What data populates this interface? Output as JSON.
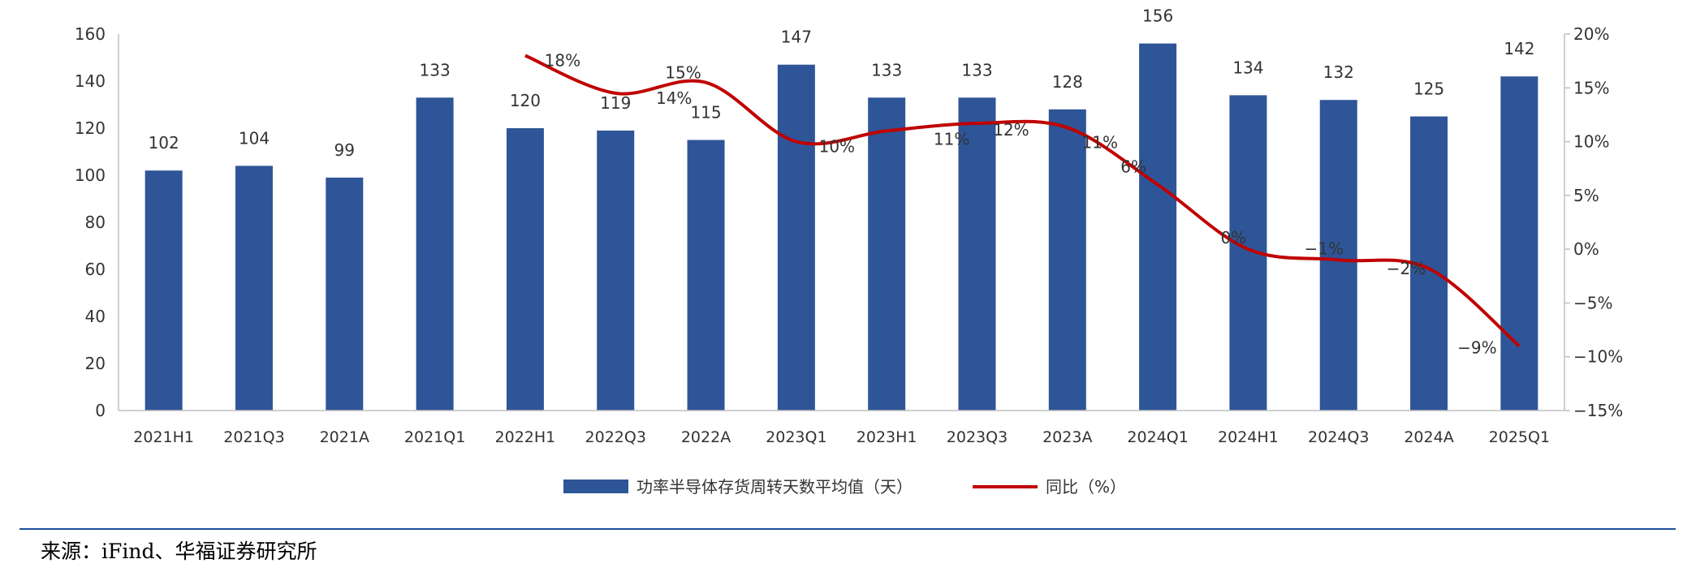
{
  "chart_data": {
    "type": "bar",
    "categories": [
      "2021H1",
      "2021Q3",
      "2021A",
      "2021Q1",
      "2022H1",
      "2022Q3",
      "2022A",
      "2023Q1",
      "2023H1",
      "2023Q3",
      "2023A",
      "2024Q1",
      "2024H1",
      "2024Q3",
      "2024A",
      "2025Q1"
    ],
    "series": [
      {
        "name": "功率半导体存货周转天数平均值（天）",
        "type": "bar",
        "axis": "left",
        "color": "#2e5597",
        "values": [
          102,
          104,
          99,
          133,
          120,
          119,
          115,
          147,
          133,
          133,
          128,
          156,
          134,
          132,
          125,
          142
        ],
        "labels": [
          "102",
          "104",
          "99",
          "133",
          "120",
          "119",
          "115",
          "147",
          "133",
          "133",
          "128",
          "156",
          "134",
          "132",
          "125",
          "142"
        ]
      },
      {
        "name": "同比（%）",
        "type": "line",
        "axis": "right",
        "color": "#c00000",
        "values": [
          null,
          null,
          null,
          null,
          18,
          14.5,
          15.5,
          10,
          11,
          11.7,
          11.3,
          6,
          0,
          -1,
          -1.8,
          -9
        ],
        "labels": [
          "",
          "",
          "",
          "",
          "18%",
          "14%",
          "15%",
          "10%",
          "11%",
          "12%",
          "11%",
          "6%",
          "0%",
          "−1%",
          "−2%",
          "−9%"
        ]
      }
    ],
    "y_left": {
      "min": 0,
      "max": 160,
      "ticks": [
        "0",
        "20",
        "40",
        "60",
        "80",
        "100",
        "120",
        "140",
        "160"
      ]
    },
    "y_right": {
      "min": -15,
      "max": 20,
      "ticks": [
        "−15%",
        "−10%",
        "−5%",
        "0%",
        "5%",
        "10%",
        "15%",
        "20%"
      ]
    },
    "grid": false,
    "legend_position": "bottom-center"
  },
  "source": "来源：iFind、华福证券研究所"
}
